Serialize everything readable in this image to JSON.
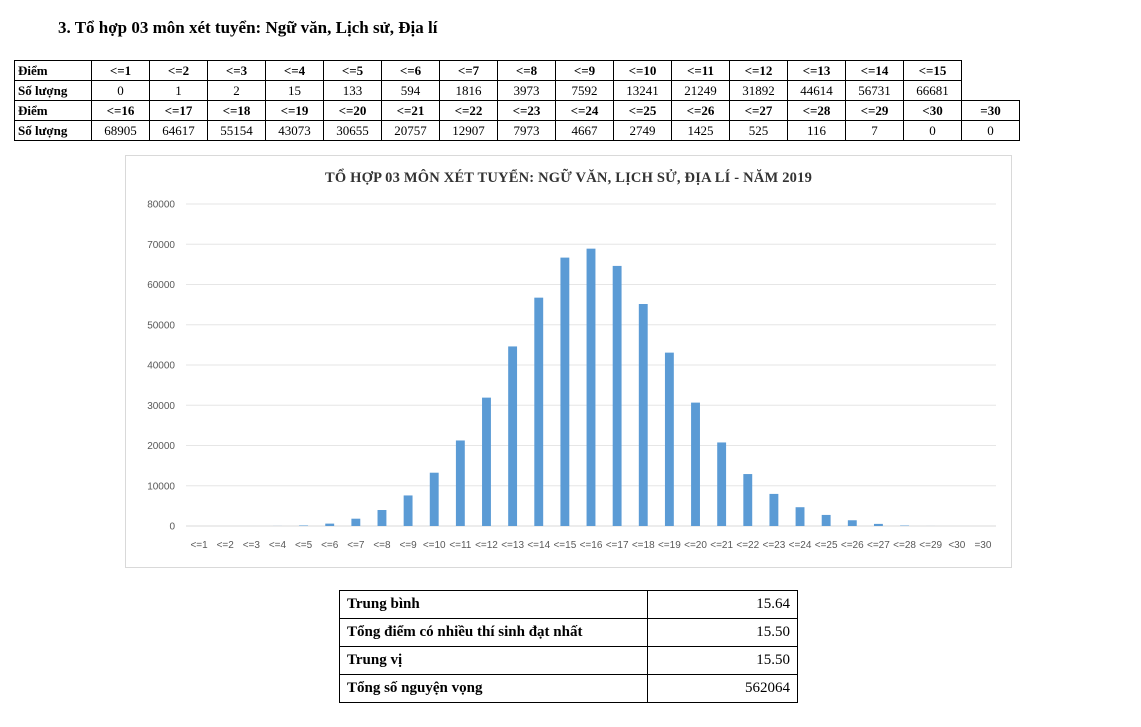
{
  "heading": "3. Tổ hợp 03 môn xét tuyển: Ngữ văn, Lịch sử, Địa lí",
  "table": {
    "score_label": "Điểm",
    "count_label": "Số lượng",
    "rows": [
      {
        "scores": [
          "<=1",
          "<=2",
          "<=3",
          "<=4",
          "<=5",
          "<=6",
          "<=7",
          "<=8",
          "<=9",
          "<=10",
          "<=11",
          "<=12",
          "<=13",
          "<=14",
          "<=15"
        ],
        "counts": [
          "0",
          "1",
          "2",
          "15",
          "133",
          "594",
          "1816",
          "3973",
          "7592",
          "13241",
          "21249",
          "31892",
          "44614",
          "56731",
          "66681"
        ]
      },
      {
        "scores": [
          "<=16",
          "<=17",
          "<=18",
          "<=19",
          "<=20",
          "<=21",
          "<=22",
          "<=23",
          "<=24",
          "<=25",
          "<=26",
          "<=27",
          "<=28",
          "<=29",
          "<30",
          "=30"
        ],
        "counts": [
          "68905",
          "64617",
          "55154",
          "43073",
          "30655",
          "20757",
          "12907",
          "7973",
          "4667",
          "2749",
          "1425",
          "525",
          "116",
          "7",
          "0",
          "0"
        ]
      }
    ]
  },
  "chart_data": {
    "type": "bar",
    "title": "TỔ HỢP 03 MÔN XÉT TUYỂN: NGỮ VĂN, LỊCH SỬ, ĐỊA LÍ - NĂM 2019",
    "categories": [
      "<=1",
      "<=2",
      "<=3",
      "<=4",
      "<=5",
      "<=6",
      "<=7",
      "<=8",
      "<=9",
      "<=10",
      "<=11",
      "<=12",
      "<=13",
      "<=14",
      "<=15",
      "<=16",
      "<=17",
      "<=18",
      "<=19",
      "<=20",
      "<=21",
      "<=22",
      "<=23",
      "<=24",
      "<=25",
      "<=26",
      "<=27",
      "<=28",
      "<=29",
      "<30",
      "=30"
    ],
    "values": [
      0,
      1,
      2,
      15,
      133,
      594,
      1816,
      3973,
      7592,
      13241,
      21249,
      31892,
      44614,
      56731,
      66681,
      68905,
      64617,
      55154,
      43073,
      30655,
      20757,
      12907,
      7973,
      4667,
      2749,
      1425,
      525,
      116,
      7,
      0,
      0
    ],
    "ylim": [
      0,
      80000
    ],
    "yticks": [
      0,
      10000,
      20000,
      30000,
      40000,
      50000,
      60000,
      70000,
      80000
    ],
    "grid": true,
    "bar_color": "#5b9bd5",
    "xlabel": "",
    "ylabel": ""
  },
  "stats": [
    {
      "label": "Trung bình",
      "value": "15.64"
    },
    {
      "label": "Tổng điểm có nhiều thí sinh đạt nhất",
      "value": "15.50"
    },
    {
      "label": "Trung vị",
      "value": "15.50"
    },
    {
      "label": "Tổng số nguyện vọng",
      "value": "562064"
    }
  ]
}
